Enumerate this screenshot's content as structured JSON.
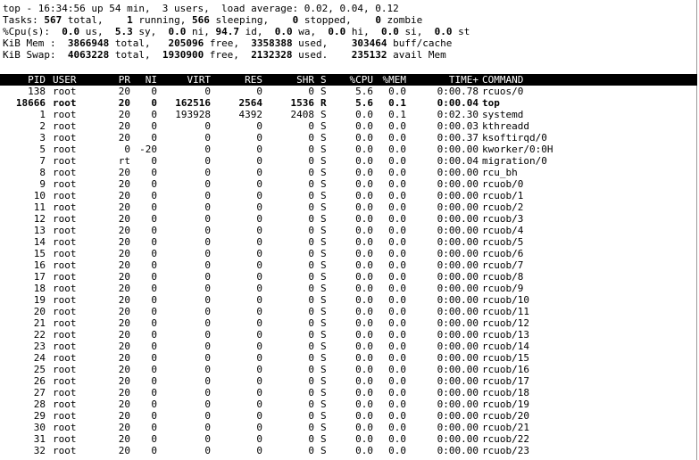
{
  "summary": {
    "line1": "top - 16:34:56 up 54 min,  3 users,  load average: 0.02, 0.04, 0.12",
    "tasks": {
      "label": "Tasks:",
      "total": "567",
      "total_l": " total,",
      "running": "1",
      "running_l": " running,",
      "sleeping": "566",
      "sleeping_l": " sleeping,",
      "stopped": "0",
      "stopped_l": " stopped,",
      "zombie": "0",
      "zombie_l": " zombie"
    },
    "cpu": {
      "label": "%Cpu(s):",
      "us": "0.0",
      "us_l": " us,",
      "sy": "5.3",
      "sy_l": " sy,",
      "ni": "0.0",
      "ni_l": " ni,",
      "id": "94.7",
      "id_l": " id,",
      "wa": "0.0",
      "wa_l": " wa,",
      "hi": "0.0",
      "hi_l": " hi,",
      "si": "0.0",
      "si_l": " si,",
      "st": "0.0",
      "st_l": " st"
    },
    "mem": {
      "label": "KiB Mem :",
      "total": "3866948",
      "total_l": " total,",
      "free": "205096",
      "free_l": " free,",
      "used": "3358388",
      "used_l": " used,",
      "buff": "303464",
      "buff_l": " buff/cache"
    },
    "swap": {
      "label": "KiB Swap:",
      "total": "4063228",
      "total_l": " total,",
      "free": "1930900",
      "free_l": " free,",
      "used": "2132328",
      "used_l": " used.",
      "avail": "235132",
      "avail_l": " avail Mem"
    }
  },
  "columns": [
    "PID",
    "USER",
    "PR",
    "NI",
    "VIRT",
    "RES",
    "SHR",
    "S",
    "%CPU",
    "%MEM",
    "TIME+",
    "COMMAND"
  ],
  "processes": [
    [
      "138",
      "root",
      "20",
      "0",
      "0",
      "0",
      "0",
      "S",
      "5.6",
      "0.0",
      "0:00.78",
      "rcuos/0"
    ],
    [
      "18666",
      "root",
      "20",
      "0",
      "162516",
      "2564",
      "1536",
      "R",
      "5.6",
      "0.1",
      "0:00.04",
      "top"
    ],
    [
      "1",
      "root",
      "20",
      "0",
      "193928",
      "4392",
      "2408",
      "S",
      "0.0",
      "0.1",
      "0:02.30",
      "systemd"
    ],
    [
      "2",
      "root",
      "20",
      "0",
      "0",
      "0",
      "0",
      "S",
      "0.0",
      "0.0",
      "0:00.03",
      "kthreadd"
    ],
    [
      "3",
      "root",
      "20",
      "0",
      "0",
      "0",
      "0",
      "S",
      "0.0",
      "0.0",
      "0:00.37",
      "ksoftirqd/0"
    ],
    [
      "5",
      "root",
      "0",
      "-20",
      "0",
      "0",
      "0",
      "S",
      "0.0",
      "0.0",
      "0:00.00",
      "kworker/0:0H"
    ],
    [
      "7",
      "root",
      "rt",
      "0",
      "0",
      "0",
      "0",
      "S",
      "0.0",
      "0.0",
      "0:00.04",
      "migration/0"
    ],
    [
      "8",
      "root",
      "20",
      "0",
      "0",
      "0",
      "0",
      "S",
      "0.0",
      "0.0",
      "0:00.00",
      "rcu_bh"
    ],
    [
      "9",
      "root",
      "20",
      "0",
      "0",
      "0",
      "0",
      "S",
      "0.0",
      "0.0",
      "0:00.00",
      "rcuob/0"
    ],
    [
      "10",
      "root",
      "20",
      "0",
      "0",
      "0",
      "0",
      "S",
      "0.0",
      "0.0",
      "0:00.00",
      "rcuob/1"
    ],
    [
      "11",
      "root",
      "20",
      "0",
      "0",
      "0",
      "0",
      "S",
      "0.0",
      "0.0",
      "0:00.00",
      "rcuob/2"
    ],
    [
      "12",
      "root",
      "20",
      "0",
      "0",
      "0",
      "0",
      "S",
      "0.0",
      "0.0",
      "0:00.00",
      "rcuob/3"
    ],
    [
      "13",
      "root",
      "20",
      "0",
      "0",
      "0",
      "0",
      "S",
      "0.0",
      "0.0",
      "0:00.00",
      "rcuob/4"
    ],
    [
      "14",
      "root",
      "20",
      "0",
      "0",
      "0",
      "0",
      "S",
      "0.0",
      "0.0",
      "0:00.00",
      "rcuob/5"
    ],
    [
      "15",
      "root",
      "20",
      "0",
      "0",
      "0",
      "0",
      "S",
      "0.0",
      "0.0",
      "0:00.00",
      "rcuob/6"
    ],
    [
      "16",
      "root",
      "20",
      "0",
      "0",
      "0",
      "0",
      "S",
      "0.0",
      "0.0",
      "0:00.00",
      "rcuob/7"
    ],
    [
      "17",
      "root",
      "20",
      "0",
      "0",
      "0",
      "0",
      "S",
      "0.0",
      "0.0",
      "0:00.00",
      "rcuob/8"
    ],
    [
      "18",
      "root",
      "20",
      "0",
      "0",
      "0",
      "0",
      "S",
      "0.0",
      "0.0",
      "0:00.00",
      "rcuob/9"
    ],
    [
      "19",
      "root",
      "20",
      "0",
      "0",
      "0",
      "0",
      "S",
      "0.0",
      "0.0",
      "0:00.00",
      "rcuob/10"
    ],
    [
      "20",
      "root",
      "20",
      "0",
      "0",
      "0",
      "0",
      "S",
      "0.0",
      "0.0",
      "0:00.00",
      "rcuob/11"
    ],
    [
      "21",
      "root",
      "20",
      "0",
      "0",
      "0",
      "0",
      "S",
      "0.0",
      "0.0",
      "0:00.00",
      "rcuob/12"
    ],
    [
      "22",
      "root",
      "20",
      "0",
      "0",
      "0",
      "0",
      "S",
      "0.0",
      "0.0",
      "0:00.00",
      "rcuob/13"
    ],
    [
      "23",
      "root",
      "20",
      "0",
      "0",
      "0",
      "0",
      "S",
      "0.0",
      "0.0",
      "0:00.00",
      "rcuob/14"
    ],
    [
      "24",
      "root",
      "20",
      "0",
      "0",
      "0",
      "0",
      "S",
      "0.0",
      "0.0",
      "0:00.00",
      "rcuob/15"
    ],
    [
      "25",
      "root",
      "20",
      "0",
      "0",
      "0",
      "0",
      "S",
      "0.0",
      "0.0",
      "0:00.00",
      "rcuob/16"
    ],
    [
      "26",
      "root",
      "20",
      "0",
      "0",
      "0",
      "0",
      "S",
      "0.0",
      "0.0",
      "0:00.00",
      "rcuob/17"
    ],
    [
      "27",
      "root",
      "20",
      "0",
      "0",
      "0",
      "0",
      "S",
      "0.0",
      "0.0",
      "0:00.00",
      "rcuob/18"
    ],
    [
      "28",
      "root",
      "20",
      "0",
      "0",
      "0",
      "0",
      "S",
      "0.0",
      "0.0",
      "0:00.00",
      "rcuob/19"
    ],
    [
      "29",
      "root",
      "20",
      "0",
      "0",
      "0",
      "0",
      "S",
      "0.0",
      "0.0",
      "0:00.00",
      "rcuob/20"
    ],
    [
      "30",
      "root",
      "20",
      "0",
      "0",
      "0",
      "0",
      "S",
      "0.0",
      "0.0",
      "0:00.00",
      "rcuob/21"
    ],
    [
      "31",
      "root",
      "20",
      "0",
      "0",
      "0",
      "0",
      "S",
      "0.0",
      "0.0",
      "0:00.00",
      "rcuob/22"
    ],
    [
      "32",
      "root",
      "20",
      "0",
      "0",
      "0",
      "0",
      "S",
      "0.0",
      "0.0",
      "0:00.00",
      "rcuob/23"
    ]
  ],
  "bold_row_index": 1,
  "colors": {
    "background": "#ffffff",
    "text": "#000000",
    "header_bg": "#000000",
    "header_text": "#ffffff"
  }
}
